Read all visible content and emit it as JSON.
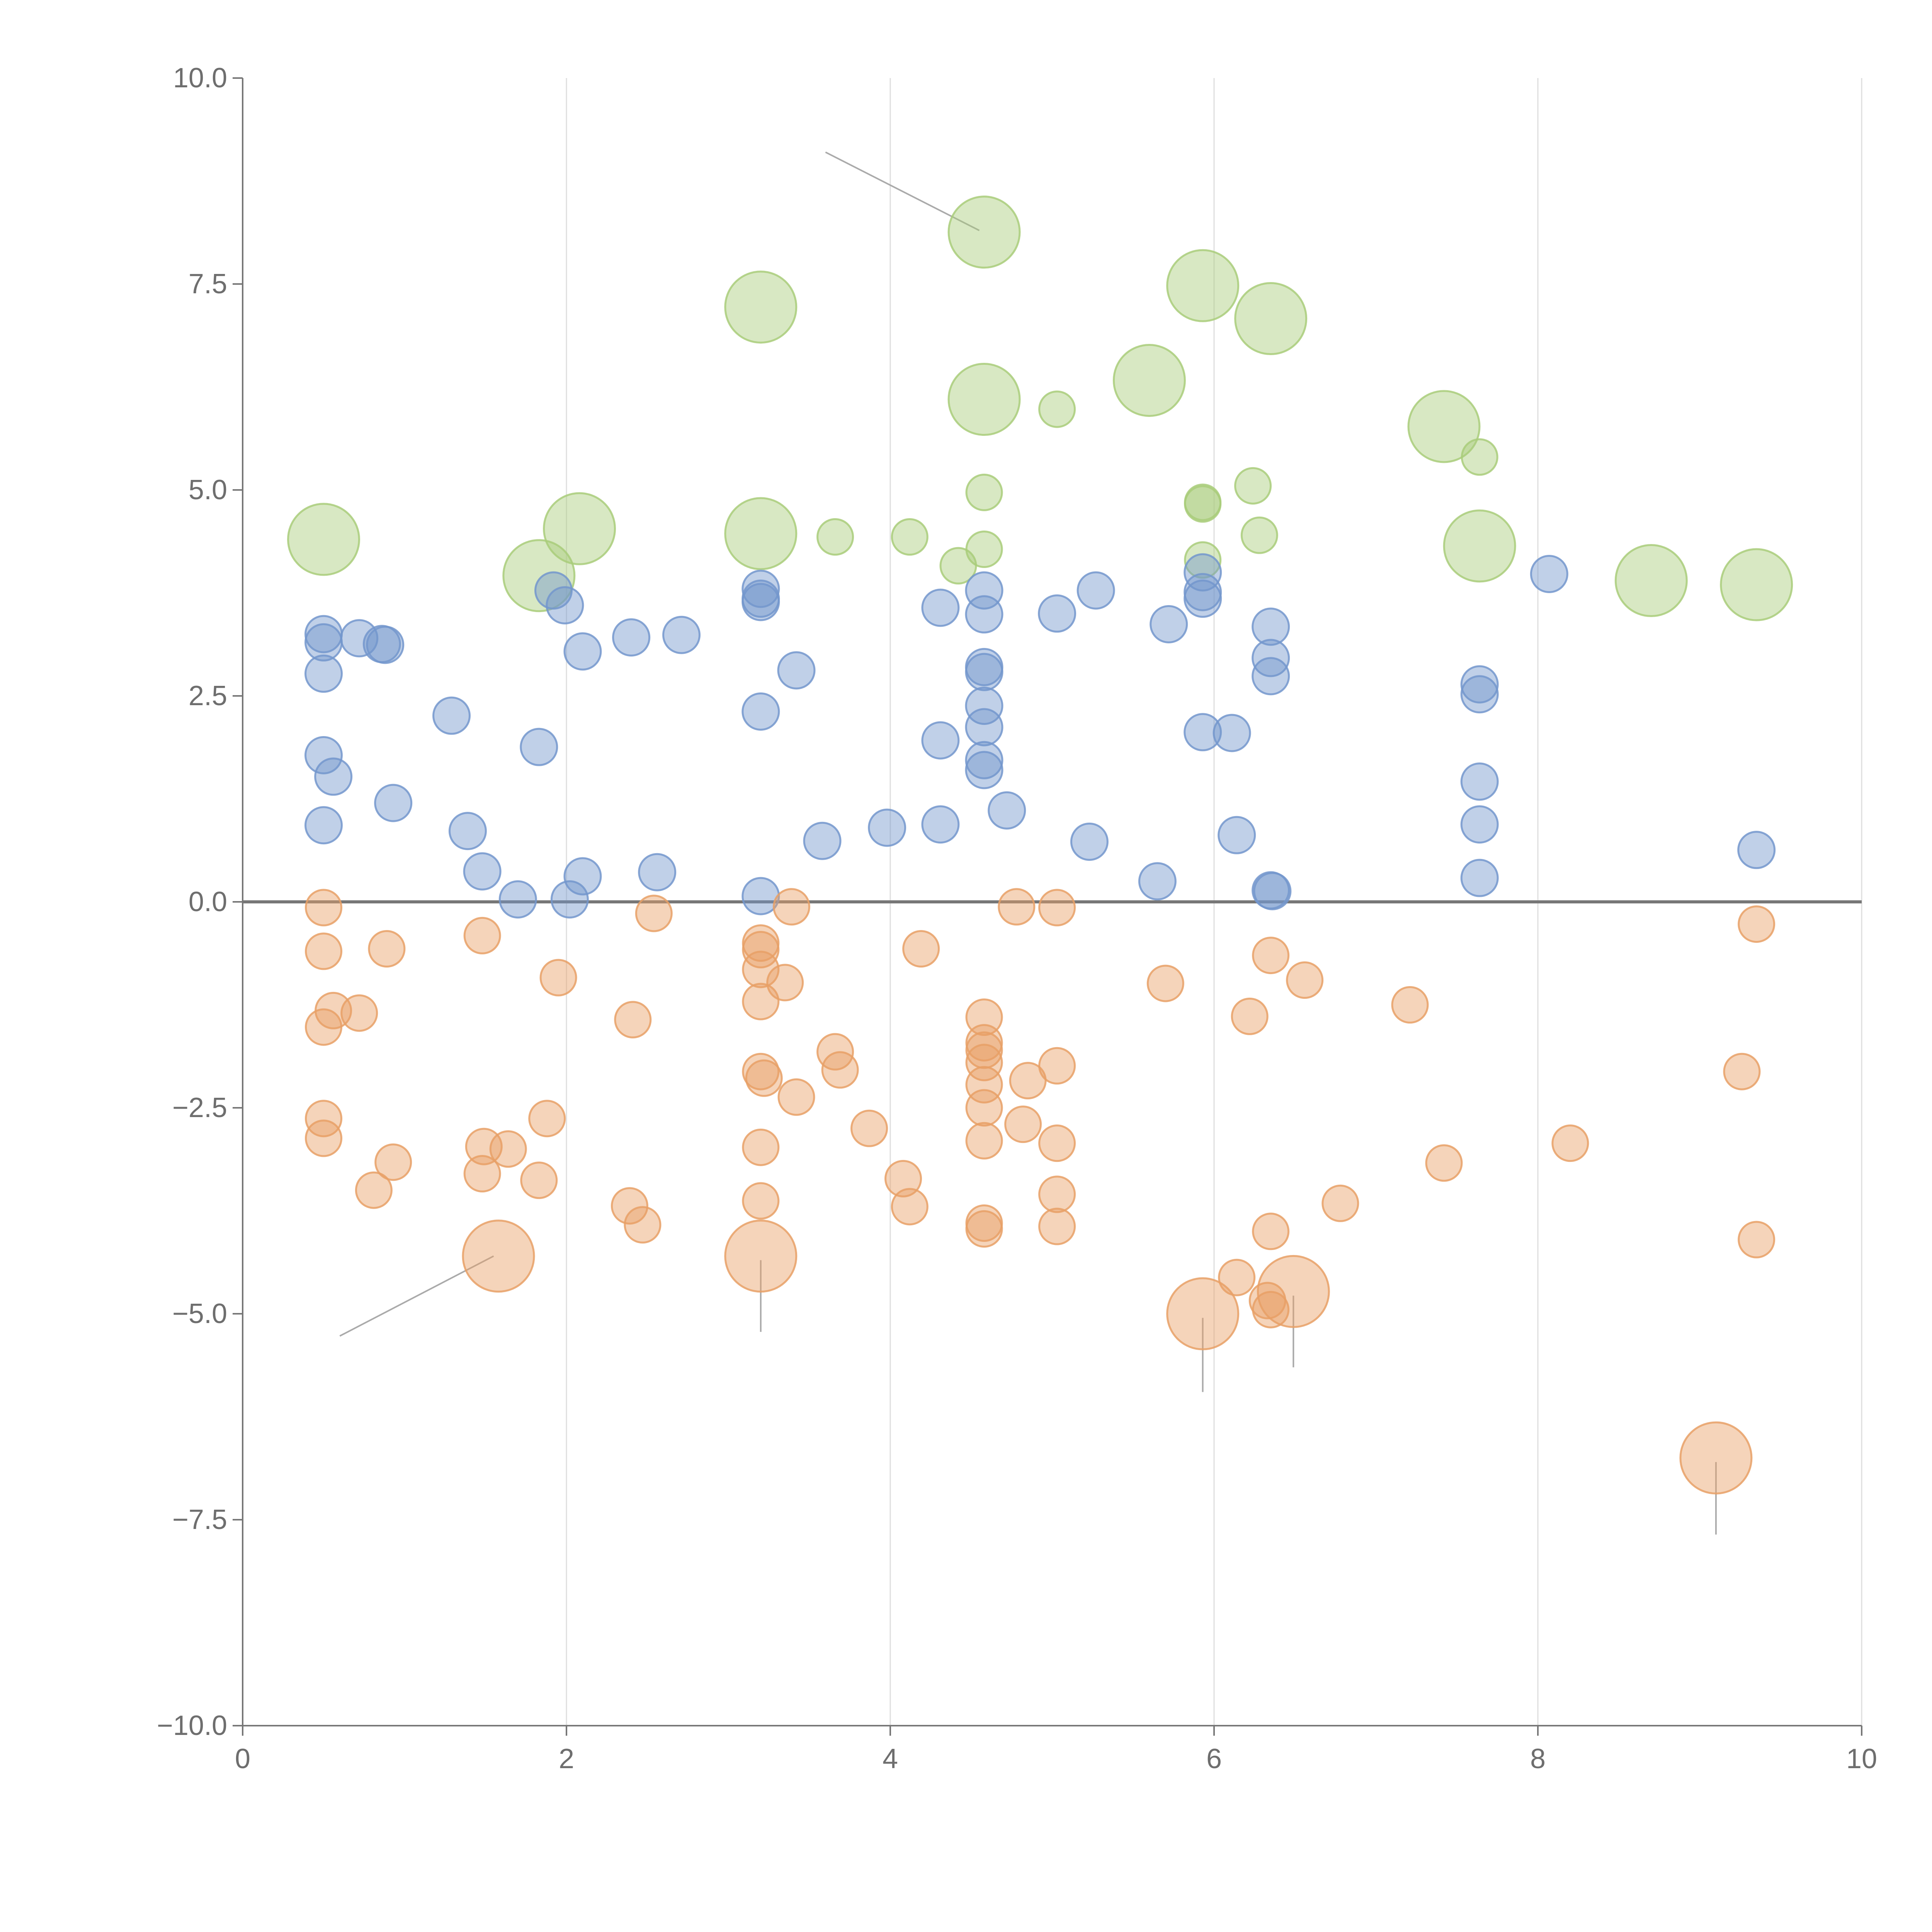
{
  "chart_data": {
    "type": "scatter",
    "title": "",
    "xlabel": "",
    "ylabel": "",
    "xlim": [
      0,
      10
    ],
    "ylim": [
      -10,
      10
    ],
    "grid": "vertical",
    "x_ticks": [
      0,
      2,
      4,
      6,
      8,
      10
    ],
    "x_tick_labels": [
      "0",
      "2",
      "4",
      "6",
      "8",
      "10"
    ],
    "y_ticks": [
      10,
      7.5,
      5,
      2.5,
      0,
      -2.5,
      -5,
      -7.5,
      -10
    ],
    "y_tick_labels": [
      "10.0",
      "7.5",
      "5.0",
      "2.5",
      "0.0",
      "−2.5",
      "−5.0",
      "−7.5",
      "−10.0"
    ],
    "reference_line_y": 0,
    "series": [
      {
        "name": "green",
        "color": "#a9cc7a",
        "points": [
          {
            "x": 0.5,
            "y": 4.4,
            "size": "large"
          },
          {
            "x": 1.83,
            "y": 3.96,
            "size": "large"
          },
          {
            "x": 2.08,
            "y": 4.53,
            "size": "large"
          },
          {
            "x": 3.2,
            "y": 7.22,
            "size": "large"
          },
          {
            "x": 3.2,
            "y": 4.47,
            "size": "large"
          },
          {
            "x": 3.66,
            "y": 4.43,
            "size": "small"
          },
          {
            "x": 4.12,
            "y": 4.43,
            "size": "small"
          },
          {
            "x": 4.42,
            "y": 4.08,
            "size": "small"
          },
          {
            "x": 4.58,
            "y": 8.13,
            "size": "large"
          },
          {
            "x": 4.58,
            "y": 6.1,
            "size": "large"
          },
          {
            "x": 4.58,
            "y": 4.97,
            "size": "small"
          },
          {
            "x": 4.58,
            "y": 4.28,
            "size": "small"
          },
          {
            "x": 5.03,
            "y": 5.98,
            "size": "small"
          },
          {
            "x": 5.6,
            "y": 6.33,
            "size": "large"
          },
          {
            "x": 5.93,
            "y": 7.48,
            "size": "large"
          },
          {
            "x": 5.93,
            "y": 4.85,
            "size": "small"
          },
          {
            "x": 5.93,
            "y": 4.83,
            "size": "small"
          },
          {
            "x": 5.93,
            "y": 4.15,
            "size": "small"
          },
          {
            "x": 6.24,
            "y": 5.05,
            "size": "small"
          },
          {
            "x": 6.28,
            "y": 4.45,
            "size": "small"
          },
          {
            "x": 6.35,
            "y": 7.08,
            "size": "large"
          },
          {
            "x": 7.42,
            "y": 5.77,
            "size": "large"
          },
          {
            "x": 7.64,
            "y": 5.4,
            "size": "small"
          },
          {
            "x": 7.64,
            "y": 4.32,
            "size": "large"
          },
          {
            "x": 8.7,
            "y": 3.9,
            "size": "large"
          },
          {
            "x": 9.35,
            "y": 3.85,
            "size": "large"
          }
        ]
      },
      {
        "name": "blue",
        "color": "#7396cc",
        "points": [
          {
            "x": 0.5,
            "y": 3.25
          },
          {
            "x": 0.5,
            "y": 3.15
          },
          {
            "x": 0.5,
            "y": 2.77
          },
          {
            "x": 0.5,
            "y": 1.78
          },
          {
            "x": 0.56,
            "y": 1.52
          },
          {
            "x": 0.5,
            "y": 0.93
          },
          {
            "x": 0.72,
            "y": 3.2
          },
          {
            "x": 0.86,
            "y": 3.13
          },
          {
            "x": 0.88,
            "y": 3.12
          },
          {
            "x": 0.93,
            "y": 1.2
          },
          {
            "x": 1.29,
            "y": 2.26
          },
          {
            "x": 1.39,
            "y": 0.86
          },
          {
            "x": 1.48,
            "y": 0.37
          },
          {
            "x": 1.7,
            "y": 0.03
          },
          {
            "x": 1.83,
            "y": 1.88
          },
          {
            "x": 1.92,
            "y": 3.78
          },
          {
            "x": 1.99,
            "y": 3.6
          },
          {
            "x": 2.02,
            "y": 0.03
          },
          {
            "x": 2.1,
            "y": 0.31
          },
          {
            "x": 2.1,
            "y": 3.04
          },
          {
            "x": 2.4,
            "y": 3.21
          },
          {
            "x": 2.56,
            "y": 0.36
          },
          {
            "x": 2.71,
            "y": 3.24
          },
          {
            "x": 3.2,
            "y": 3.8
          },
          {
            "x": 3.2,
            "y": 3.68
          },
          {
            "x": 3.2,
            "y": 3.64
          },
          {
            "x": 3.2,
            "y": 2.31
          },
          {
            "x": 3.2,
            "y": 0.07
          },
          {
            "x": 3.42,
            "y": 2.81
          },
          {
            "x": 3.58,
            "y": 0.74
          },
          {
            "x": 3.98,
            "y": 0.9
          },
          {
            "x": 4.31,
            "y": 3.57
          },
          {
            "x": 4.31,
            "y": 1.96
          },
          {
            "x": 4.31,
            "y": 0.94
          },
          {
            "x": 4.58,
            "y": 3.78
          },
          {
            "x": 4.58,
            "y": 3.49
          },
          {
            "x": 4.58,
            "y": 2.85
          },
          {
            "x": 4.58,
            "y": 2.79
          },
          {
            "x": 4.58,
            "y": 2.38
          },
          {
            "x": 4.58,
            "y": 2.12
          },
          {
            "x": 4.58,
            "y": 1.72
          },
          {
            "x": 4.58,
            "y": 1.6
          },
          {
            "x": 4.72,
            "y": 1.11
          },
          {
            "x": 5.03,
            "y": 3.5
          },
          {
            "x": 5.23,
            "y": 0.73
          },
          {
            "x": 5.27,
            "y": 3.78
          },
          {
            "x": 5.65,
            "y": 0.25
          },
          {
            "x": 5.72,
            "y": 3.37
          },
          {
            "x": 5.93,
            "y": 4.0
          },
          {
            "x": 5.93,
            "y": 3.76
          },
          {
            "x": 5.93,
            "y": 3.68
          },
          {
            "x": 5.93,
            "y": 2.06
          },
          {
            "x": 6.11,
            "y": 2.05
          },
          {
            "x": 6.14,
            "y": 0.81
          },
          {
            "x": 6.35,
            "y": 3.34
          },
          {
            "x": 6.35,
            "y": 2.96
          },
          {
            "x": 6.35,
            "y": 2.74
          },
          {
            "x": 6.35,
            "y": 0.14
          },
          {
            "x": 6.36,
            "y": 0.13
          },
          {
            "x": 7.64,
            "y": 2.64
          },
          {
            "x": 7.64,
            "y": 2.52
          },
          {
            "x": 7.64,
            "y": 1.46
          },
          {
            "x": 7.64,
            "y": 0.94
          },
          {
            "x": 7.64,
            "y": 0.29
          },
          {
            "x": 8.07,
            "y": 3.98
          },
          {
            "x": 9.35,
            "y": 0.63
          }
        ]
      },
      {
        "name": "orange",
        "color": "#e8a066",
        "points": [
          {
            "x": 0.5,
            "y": -0.07,
            "size": "small"
          },
          {
            "x": 0.5,
            "y": -0.6,
            "size": "small"
          },
          {
            "x": 0.56,
            "y": -1.32,
            "size": "small"
          },
          {
            "x": 0.5,
            "y": -1.52,
            "size": "small"
          },
          {
            "x": 0.5,
            "y": -2.63,
            "size": "small"
          },
          {
            "x": 0.5,
            "y": -2.87,
            "size": "small"
          },
          {
            "x": 0.72,
            "y": -1.35,
            "size": "small"
          },
          {
            "x": 0.81,
            "y": -3.5,
            "size": "small"
          },
          {
            "x": 0.89,
            "y": -0.57,
            "size": "small"
          },
          {
            "x": 0.93,
            "y": -3.16,
            "size": "small"
          },
          {
            "x": 1.48,
            "y": -0.41,
            "size": "small"
          },
          {
            "x": 1.49,
            "y": -2.97,
            "size": "small"
          },
          {
            "x": 1.48,
            "y": -3.3,
            "size": "small"
          },
          {
            "x": 1.64,
            "y": -3.0,
            "size": "small"
          },
          {
            "x": 1.58,
            "y": -4.3,
            "size": "large"
          },
          {
            "x": 1.83,
            "y": -3.38,
            "size": "small"
          },
          {
            "x": 1.88,
            "y": -2.63,
            "size": "small"
          },
          {
            "x": 1.95,
            "y": -0.92,
            "size": "small"
          },
          {
            "x": 2.39,
            "y": -3.69,
            "size": "small"
          },
          {
            "x": 2.41,
            "y": -1.43,
            "size": "small"
          },
          {
            "x": 2.47,
            "y": -3.92,
            "size": "small"
          },
          {
            "x": 2.54,
            "y": -0.14,
            "size": "small"
          },
          {
            "x": 3.2,
            "y": -0.5,
            "size": "small"
          },
          {
            "x": 3.2,
            "y": -0.58,
            "size": "small"
          },
          {
            "x": 3.2,
            "y": -0.82,
            "size": "small"
          },
          {
            "x": 3.2,
            "y": -1.21,
            "size": "small"
          },
          {
            "x": 3.2,
            "y": -2.06,
            "size": "small"
          },
          {
            "x": 3.22,
            "y": -2.14,
            "size": "small"
          },
          {
            "x": 3.2,
            "y": -2.98,
            "size": "small"
          },
          {
            "x": 3.2,
            "y": -3.63,
            "size": "small"
          },
          {
            "x": 3.2,
            "y": -4.3,
            "size": "large"
          },
          {
            "x": 3.35,
            "y": -0.98,
            "size": "small"
          },
          {
            "x": 3.39,
            "y": -0.06,
            "size": "small"
          },
          {
            "x": 3.42,
            "y": -2.37,
            "size": "small"
          },
          {
            "x": 3.66,
            "y": -1.82,
            "size": "small"
          },
          {
            "x": 3.69,
            "y": -2.04,
            "size": "small"
          },
          {
            "x": 3.87,
            "y": -2.75,
            "size": "small"
          },
          {
            "x": 4.08,
            "y": -3.36,
            "size": "small"
          },
          {
            "x": 4.12,
            "y": -3.7,
            "size": "small"
          },
          {
            "x": 4.19,
            "y": -0.57,
            "size": "small"
          },
          {
            "x": 4.58,
            "y": -1.4,
            "size": "small"
          },
          {
            "x": 4.58,
            "y": -1.71,
            "size": "small"
          },
          {
            "x": 4.58,
            "y": -1.8,
            "size": "small"
          },
          {
            "x": 4.58,
            "y": -1.95,
            "size": "small"
          },
          {
            "x": 4.58,
            "y": -2.22,
            "size": "small"
          },
          {
            "x": 4.58,
            "y": -2.5,
            "size": "small"
          },
          {
            "x": 4.58,
            "y": -2.9,
            "size": "small"
          },
          {
            "x": 4.58,
            "y": -3.9,
            "size": "small"
          },
          {
            "x": 4.58,
            "y": -3.97,
            "size": "small"
          },
          {
            "x": 4.78,
            "y": -0.06,
            "size": "small"
          },
          {
            "x": 4.82,
            "y": -2.7,
            "size": "small"
          },
          {
            "x": 4.85,
            "y": -2.17,
            "size": "small"
          },
          {
            "x": 5.03,
            "y": -0.07,
            "size": "small"
          },
          {
            "x": 5.03,
            "y": -1.99,
            "size": "small"
          },
          {
            "x": 5.03,
            "y": -2.93,
            "size": "small"
          },
          {
            "x": 5.03,
            "y": -3.55,
            "size": "small"
          },
          {
            "x": 5.03,
            "y": -3.94,
            "size": "small"
          },
          {
            "x": 5.7,
            "y": -0.99,
            "size": "small"
          },
          {
            "x": 5.93,
            "y": -5.0,
            "size": "large"
          },
          {
            "x": 6.14,
            "y": -4.56,
            "size": "small"
          },
          {
            "x": 6.22,
            "y": -1.39,
            "size": "small"
          },
          {
            "x": 6.33,
            "y": -4.84,
            "size": "small"
          },
          {
            "x": 6.35,
            "y": -4.95,
            "size": "small"
          },
          {
            "x": 6.35,
            "y": -4.0,
            "size": "small"
          },
          {
            "x": 6.35,
            "y": -0.65,
            "size": "small"
          },
          {
            "x": 6.49,
            "y": -4.73,
            "size": "large"
          },
          {
            "x": 6.56,
            "y": -0.95,
            "size": "small"
          },
          {
            "x": 6.78,
            "y": -3.66,
            "size": "small"
          },
          {
            "x": 7.21,
            "y": -1.25,
            "size": "small"
          },
          {
            "x": 7.42,
            "y": -3.17,
            "size": "small"
          },
          {
            "x": 8.2,
            "y": -2.93,
            "size": "small"
          },
          {
            "x": 9.1,
            "y": -6.75,
            "size": "large"
          },
          {
            "x": 9.26,
            "y": -2.06,
            "size": "small"
          },
          {
            "x": 9.35,
            "y": -0.27,
            "size": "small"
          },
          {
            "x": 9.35,
            "y": -4.1,
            "size": "small"
          }
        ]
      }
    ],
    "annotation_leaders": [
      {
        "from": [
          4.55,
          8.15
        ],
        "to": [
          3.6,
          9.1
        ]
      },
      {
        "from": [
          1.55,
          -4.3
        ],
        "to": [
          0.6,
          -5.27
        ]
      },
      {
        "from": [
          3.2,
          -4.35
        ],
        "to": [
          3.2,
          -5.22
        ]
      },
      {
        "from": [
          5.93,
          -5.05
        ],
        "to": [
          5.93,
          -5.95
        ]
      },
      {
        "from": [
          6.49,
          -4.78
        ],
        "to": [
          6.49,
          -5.65
        ]
      },
      {
        "from": [
          9.1,
          -6.8
        ],
        "to": [
          9.1,
          -7.68
        ]
      }
    ]
  }
}
